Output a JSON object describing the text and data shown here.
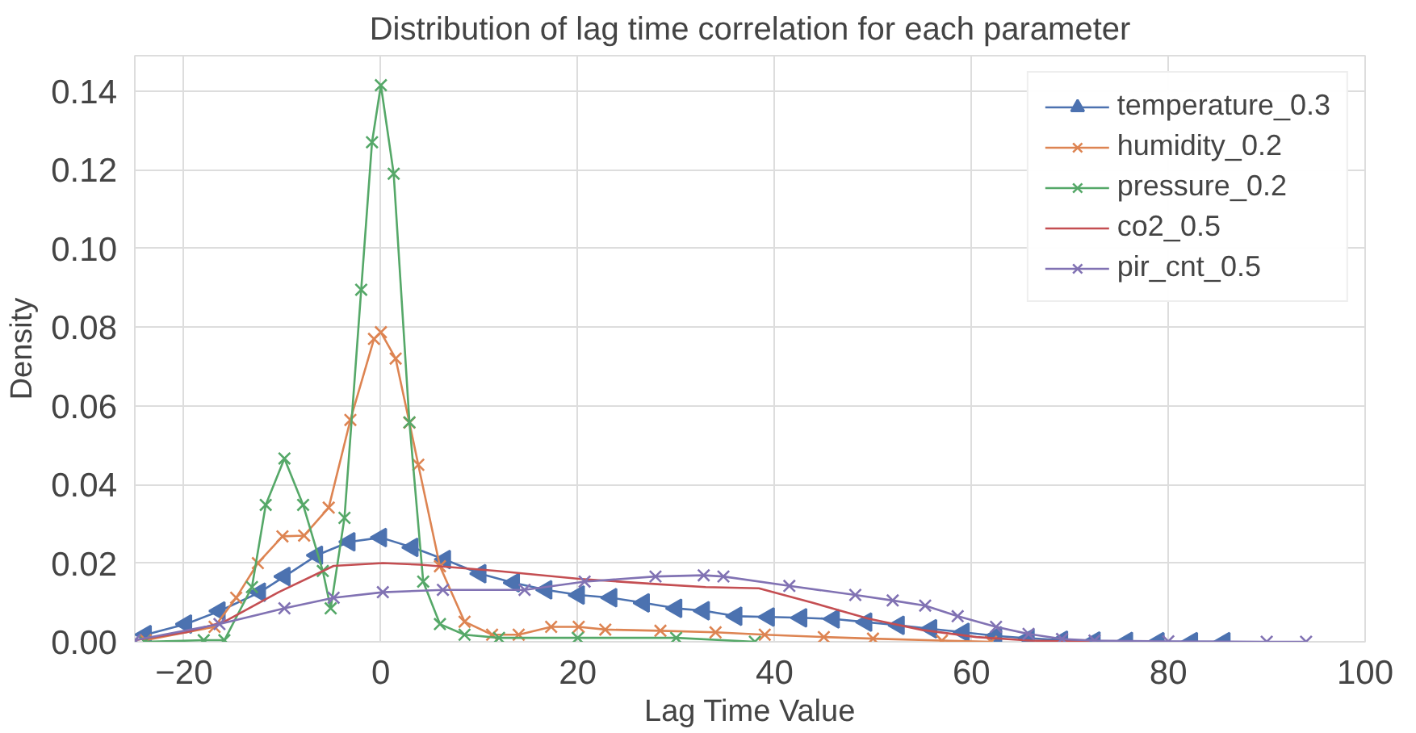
{
  "chart_data": {
    "type": "line",
    "title": "Distribution of lag time correlation for each parameter",
    "xlabel": "Lag Time Value",
    "ylabel": "Density",
    "xlim": [
      -25,
      100
    ],
    "xticks": [
      -20,
      0,
      20,
      40,
      60,
      80,
      100
    ],
    "ylim": [
      0,
      0.149
    ],
    "yticks": [
      {
        "value": 0,
        "label": "0.00"
      },
      {
        "value": 0.02,
        "label": "0.02"
      },
      {
        "value": 0.04,
        "label": "0.04"
      },
      {
        "value": 0.06,
        "label": "0.06"
      },
      {
        "value": 0.08,
        "label": "0.08"
      },
      {
        "value": 0.1,
        "label": "0.10"
      },
      {
        "value": 0.12,
        "label": "0.12"
      },
      {
        "value": 0.14,
        "label": "0.14"
      }
    ],
    "grid": true,
    "legend": "top right",
    "series": [
      {
        "name": "temperature_0.3",
        "color": "#4c72b0",
        "marker": "triangle",
        "x": [
          -23.9,
          -19.8,
          -16.4,
          -12.3,
          -9.8,
          -6.5,
          -3.2,
          0,
          3.2,
          6.5,
          10.1,
          13.5,
          16.8,
          20.1,
          23.4,
          26.7,
          30.0,
          32.8,
          36.1,
          39.4,
          42.7,
          46.0,
          49.3,
          52.6,
          55.9,
          59.2,
          62.5,
          65.8,
          69.2,
          72.5,
          75.8,
          79.0,
          82.4,
          85.7
        ],
        "values": [
          0.0018,
          0.0045,
          0.0078,
          0.0126,
          0.0166,
          0.022,
          0.0254,
          0.0265,
          0.024,
          0.0209,
          0.0173,
          0.015,
          0.0132,
          0.0119,
          0.0112,
          0.0099,
          0.0085,
          0.0079,
          0.0065,
          0.0063,
          0.0061,
          0.0058,
          0.005,
          0.0042,
          0.0033,
          0.0024,
          0.0015,
          0.0009,
          0.0004,
          0.0002,
          0.0001,
          0,
          0,
          0
        ]
      },
      {
        "name": "humidity_0.2",
        "color": "#dd8452",
        "marker": "cross",
        "x": [
          -23.9,
          -16.9,
          -14.7,
          -12.5,
          -10.0,
          -7.8,
          -5.3,
          -3.1,
          -0.7,
          0,
          1.5,
          2.9,
          3.8,
          6.0,
          8.5,
          11.3,
          14.0,
          17.3,
          20.1,
          22.8,
          28.4,
          34.0,
          39.0,
          45.0,
          50.0,
          57.0,
          62.0
        ],
        "values": [
          0.0004,
          0.0038,
          0.0112,
          0.02,
          0.0268,
          0.027,
          0.0341,
          0.0564,
          0.077,
          0.0787,
          0.072,
          0.0557,
          0.045,
          0.0192,
          0.0051,
          0.0018,
          0.0018,
          0.0038,
          0.0038,
          0.0031,
          0.0028,
          0.0024,
          0.0018,
          0.0012,
          0.0008,
          0.0003,
          0
        ]
      },
      {
        "name": "pressure_0.2",
        "color": "#55a868",
        "marker": "cross",
        "x": [
          -24.0,
          -18.0,
          -15.9,
          -13.1,
          -11.7,
          -9.8,
          -7.9,
          -5.9,
          -5.1,
          -3.7,
          -2.0,
          -0.9,
          0,
          1.3,
          2.9,
          4.3,
          6.0,
          8.5,
          12.0,
          20.0,
          30.0,
          38.0
        ],
        "values": [
          0,
          0.0004,
          0.0004,
          0.0139,
          0.0348,
          0.0466,
          0.0348,
          0.018,
          0.0085,
          0.0315,
          0.0895,
          0.127,
          0.1415,
          0.119,
          0.0558,
          0.0153,
          0.0045,
          0.0018,
          0.001,
          0.001,
          0.001,
          0
        ]
      },
      {
        "name": "co2_0.5",
        "color": "#c44e52",
        "marker": "none",
        "x": [
          -25.0,
          -19.8,
          -15.9,
          -10.4,
          -4.8,
          0.2,
          4.0,
          11.8,
          20.1,
          28.4,
          33.0,
          38.4,
          43.9,
          49.5,
          55.0,
          60.5,
          66.0,
          72.0
        ],
        "values": [
          0.0004,
          0.0024,
          0.0051,
          0.0126,
          0.0193,
          0.02,
          0.0196,
          0.018,
          0.016,
          0.0146,
          0.0139,
          0.0136,
          0.0099,
          0.0059,
          0.003,
          0.0012,
          0.0003,
          0
        ]
      },
      {
        "name": "pir_cnt_0.5",
        "color": "#8172b3",
        "marker": "cross",
        "x": [
          -25.0,
          -16.4,
          -9.8,
          -4.8,
          0.2,
          6.3,
          14.6,
          20.7,
          27.9,
          32.8,
          34.8,
          41.5,
          48.2,
          52.0,
          55.3,
          58.6,
          62.5,
          65.8,
          69.2,
          72.5,
          80.0,
          90.0,
          94.0
        ],
        "values": [
          0.0004,
          0.0045,
          0.0085,
          0.0112,
          0.0126,
          0.0132,
          0.0132,
          0.0153,
          0.0166,
          0.0169,
          0.0166,
          0.0142,
          0.0119,
          0.0105,
          0.0092,
          0.0065,
          0.0038,
          0.002,
          0.0007,
          0.0003,
          0.0001,
          0,
          0
        ]
      }
    ]
  }
}
